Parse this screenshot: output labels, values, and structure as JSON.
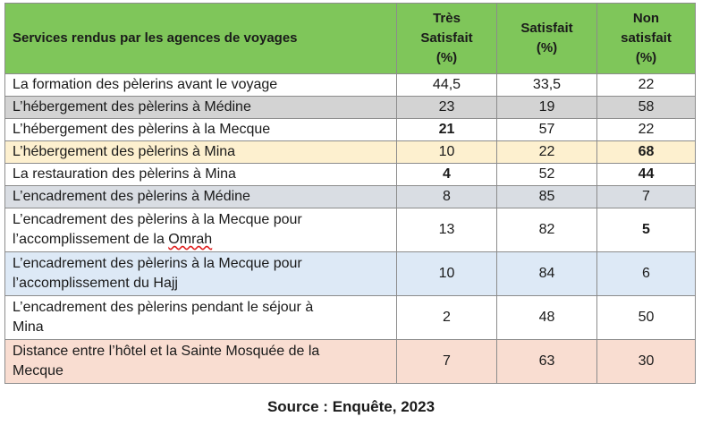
{
  "table": {
    "headers": {
      "service": "Services rendus par les agences de voyages",
      "tres_satisfait": [
        "Très",
        "Satisfait",
        "(%)"
      ],
      "satisfait": [
        "Satisfait",
        "(%)"
      ],
      "non_satisfait": [
        "Non",
        "satisfait",
        "(%)"
      ]
    },
    "rows": [
      {
        "service": "La formation des pèlerins avant le voyage",
        "tres": "44,5",
        "sat": "33,5",
        "non": "22",
        "bg": "#ffffff"
      },
      {
        "service": "L’hébergement des pèlerins à Médine",
        "tres": "23",
        "sat": "19",
        "non": "58",
        "bg": "#d3d3d3"
      },
      {
        "service": "L’hébergement des pèlerins à la Mecque",
        "tres": "21",
        "sat": "57",
        "non": "22",
        "bg": "#ffffff"
      },
      {
        "service": "L’hébergement des pèlerins à Mina",
        "tres": "10",
        "sat": "22",
        "non": "68",
        "bg": "#fdf0cf"
      },
      {
        "service": "La restauration des pèlerins à Mina",
        "tres": "4",
        "sat": "52",
        "non": "44",
        "bg": "#ffffff"
      },
      {
        "service": "L’encadrement des pèlerins à Médine",
        "tres": "8",
        "sat": "85",
        "non": "7",
        "bg": "#d9dde3"
      },
      {
        "service_lines": [
          "L’encadrement des pèlerins à la Mecque pour",
          "l’accomplissement de la ",
          "Omrah"
        ],
        "tres": "13",
        "sat": "82",
        "non": "5",
        "bg": "#ffffff"
      },
      {
        "service_lines": [
          "L’encadrement des pèlerins à la Mecque pour",
          "l’accomplissement du Hajj"
        ],
        "tres": "10",
        "sat": "84",
        "non": "6",
        "bg": "#dde9f6"
      },
      {
        "service_lines": [
          "L’encadrement des pèlerins pendant le séjour à",
          "Mina"
        ],
        "tres": "2",
        "sat": "48",
        "non": "50",
        "bg": "#ffffff"
      },
      {
        "service_lines": [
          "Distance entre l’hôtel et la Sainte Mosquée de la",
          "Mecque"
        ],
        "tres": "7",
        "sat": "63",
        "non": "30",
        "bg": "#f9ddd1"
      }
    ]
  },
  "source": "Source : Enquête, 2023"
}
